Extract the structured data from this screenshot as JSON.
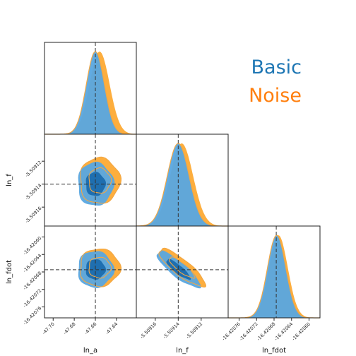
{
  "chart_data": {
    "type": "corner",
    "parameters": [
      "ln_a",
      "ln_f",
      "ln_fdot"
    ],
    "truth": [
      -47.66,
      -5.50914,
      -16.420675
    ],
    "ranges": {
      "ln_a": [
        -47.7082,
        -47.6212
      ],
      "ln_f": [
        -5.5091765,
        -5.5090965
      ],
      "ln_fdot": [
        -16.420785,
        -16.420575
      ]
    },
    "ticks": {
      "ln_a": [
        "-47.70",
        "-47.68",
        "-47.66",
        "-47.64"
      ],
      "ln_f": [
        "-5.50918",
        "-5.50916",
        "-5.50914",
        "-5.50912"
      ],
      "ln_fdot": [
        "-16.42076",
        "-16.42072",
        "-16.42068",
        "-16.42064",
        "-16.42060"
      ]
    },
    "tick_values": {
      "ln_a": [
        -47.7,
        -47.68,
        -47.66,
        -47.64
      ],
      "ln_f": [
        -5.50918,
        -5.50916,
        -5.50914,
        -5.50912
      ],
      "ln_fdot": [
        -16.42076,
        -16.42072,
        -16.42068,
        -16.42064,
        -16.4206
      ]
    },
    "series": [
      {
        "name": "Basic",
        "color": "#1f77b4",
        "fill_light": "#59a6e0",
        "fill_dark": "#1f6fb0",
        "mean": [
          -47.66,
          -5.50914,
          -16.420674
        ],
        "std": [
          0.0085,
          9.5e-06,
          2.1e-05
        ],
        "corr": {
          "ln_a,ln_f": 0.0,
          "ln_a,ln_fdot": 0.0,
          "ln_f,ln_fdot": -0.85
        }
      },
      {
        "name": "Noise",
        "color": "#ff7f0e",
        "fill_light": "#fdae3e",
        "mean": [
          -47.656,
          -5.509137,
          -16.42067
        ],
        "std": [
          0.0095,
          1e-05,
          2.15e-05
        ],
        "corr": {
          "ln_a,ln_f": 0.0,
          "ln_a,ln_fdot": 0.0,
          "ln_f,ln_fdot": -0.85
        }
      }
    ],
    "xlabels": [
      "ln_a",
      "ln_f",
      "ln_fdot"
    ],
    "ylabels": [
      "",
      "ln_f",
      "ln_fdot"
    ],
    "legend": {
      "placement": "top-right",
      "entries": [
        "Basic",
        "Noise"
      ]
    },
    "grid": false
  }
}
